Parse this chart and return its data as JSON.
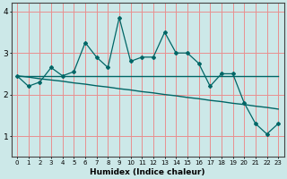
{
  "title": "",
  "xlabel": "Humidex (Indice chaleur)",
  "ylabel": "",
  "bg_color": "#cce8e8",
  "line_color": "#006666",
  "grid_color": "#e89090",
  "x_data": [
    0,
    1,
    2,
    3,
    4,
    5,
    6,
    7,
    8,
    9,
    10,
    11,
    12,
    13,
    14,
    15,
    16,
    17,
    18,
    19,
    20,
    21,
    22,
    23
  ],
  "y_scatter": [
    2.45,
    2.2,
    2.3,
    2.65,
    2.45,
    2.55,
    3.25,
    2.9,
    2.65,
    3.85,
    2.8,
    2.9,
    2.9,
    3.5,
    3.0,
    3.0,
    2.75,
    2.2,
    2.5,
    2.5,
    1.8,
    1.3,
    1.05,
    1.3
  ],
  "y_smooth1": [
    2.45,
    2.45,
    2.45,
    2.45,
    2.45,
    2.45,
    2.45,
    2.45,
    2.45,
    2.45,
    2.45,
    2.45,
    2.45,
    2.45,
    2.45,
    2.45,
    2.45,
    2.45,
    2.45,
    2.45,
    2.45,
    2.45,
    2.45,
    2.45
  ],
  "y_smooth2": [
    2.45,
    2.42,
    2.38,
    2.35,
    2.32,
    2.28,
    2.25,
    2.21,
    2.18,
    2.14,
    2.11,
    2.07,
    2.04,
    2.0,
    1.97,
    1.93,
    1.9,
    1.86,
    1.83,
    1.79,
    1.76,
    1.72,
    1.69,
    1.65
  ],
  "ylim": [
    0.5,
    4.2
  ],
  "xlim": [
    -0.5,
    23.5
  ],
  "yticks": [
    1,
    2,
    3,
    4
  ],
  "xticks": [
    0,
    1,
    2,
    3,
    4,
    5,
    6,
    7,
    8,
    9,
    10,
    11,
    12,
    13,
    14,
    15,
    16,
    17,
    18,
    19,
    20,
    21,
    22,
    23
  ]
}
